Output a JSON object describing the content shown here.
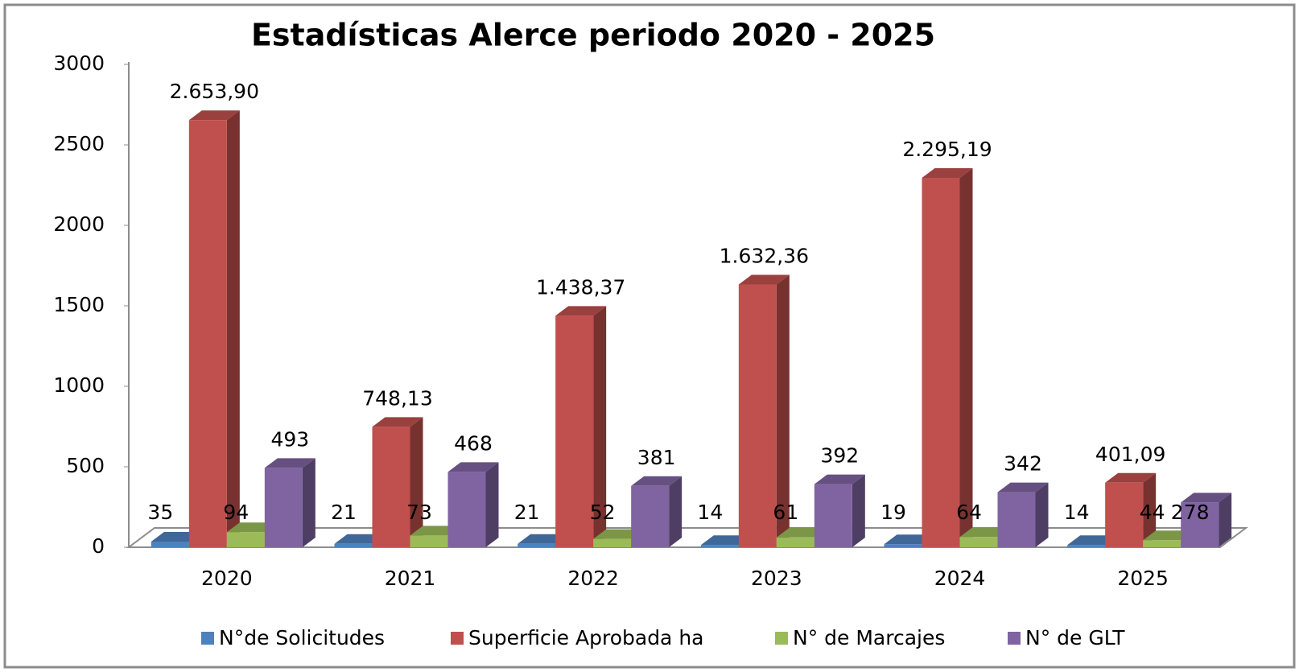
{
  "chart_data": {
    "type": "bar3d",
    "title": "Estadísticas Alerce periodo 2020 - 2025",
    "categories": [
      "2020",
      "2021",
      "2022",
      "2023",
      "2024",
      "2025"
    ],
    "series": [
      {
        "name": "N°de Solicitudes",
        "color": "#4f81bd",
        "values": [
          35,
          21,
          21,
          14,
          19,
          14
        ]
      },
      {
        "name": "Superficie Aprobada ha",
        "color": "#c0504d",
        "values": [
          2653.9,
          748.13,
          1438.37,
          1632.36,
          2295.19,
          401.09
        ],
        "value_labels": [
          "2.653,90",
          "748,13",
          "1.438,37",
          "1.632,36",
          "2.295,19",
          "401,09"
        ]
      },
      {
        "name": "N° de Marcajes",
        "color": "#9bbb59",
        "values": [
          94,
          73,
          52,
          61,
          64,
          44
        ]
      },
      {
        "name": "N° de GLT",
        "color": "#8064a2",
        "values": [
          493,
          468,
          381,
          392,
          342,
          278
        ]
      }
    ],
    "ylim": [
      0,
      3000
    ],
    "yticks": [
      0,
      500,
      1000,
      1500,
      2000,
      2500,
      3000
    ],
    "legend": "bottom"
  }
}
